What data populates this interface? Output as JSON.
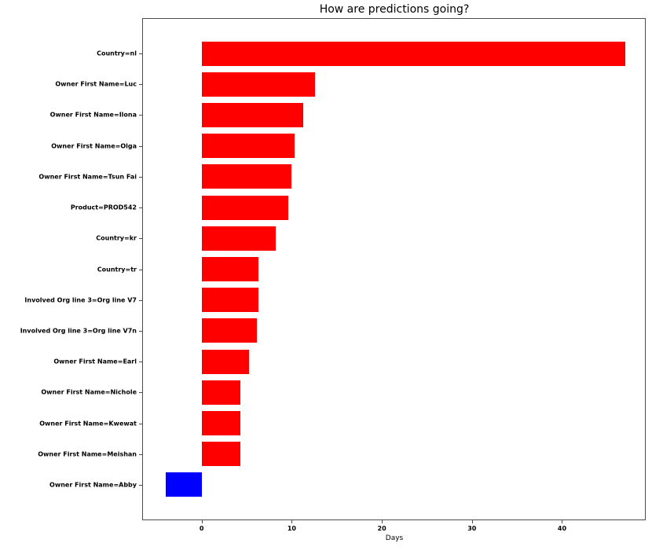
{
  "chart_data": {
    "type": "bar",
    "orientation": "horizontal",
    "title": "How are predictions going?",
    "xlabel": "Days",
    "ylabel": "",
    "categories": [
      "Country=nl",
      "Owner First Name=Luc",
      "Owner First Name=Ilona",
      "Owner First Name=Olga",
      "Owner First Name=Tsun Fai",
      "Product=PROD542",
      "Country=kr",
      "Country=tr",
      "Involved Org line 3=Org line V7",
      "Involved Org line 3=Org line V7n",
      "Owner First Name=Earl",
      "Owner First Name=Nichole",
      "Owner First Name=Kwewat",
      "Owner First Name=Meishan",
      "Owner First Name=Abby"
    ],
    "values": [
      47.0,
      12.6,
      11.3,
      10.3,
      10.0,
      9.6,
      8.2,
      6.3,
      6.3,
      6.1,
      5.3,
      4.3,
      4.3,
      4.3,
      -4.0
    ],
    "units": "Days",
    "xlim": [
      -6.6,
      49.2
    ],
    "xticks": [
      0,
      10,
      20,
      30,
      40
    ],
    "grid": false,
    "legend": null,
    "colors": {
      "positive": "#ff0000",
      "negative": "#0000ff"
    }
  }
}
